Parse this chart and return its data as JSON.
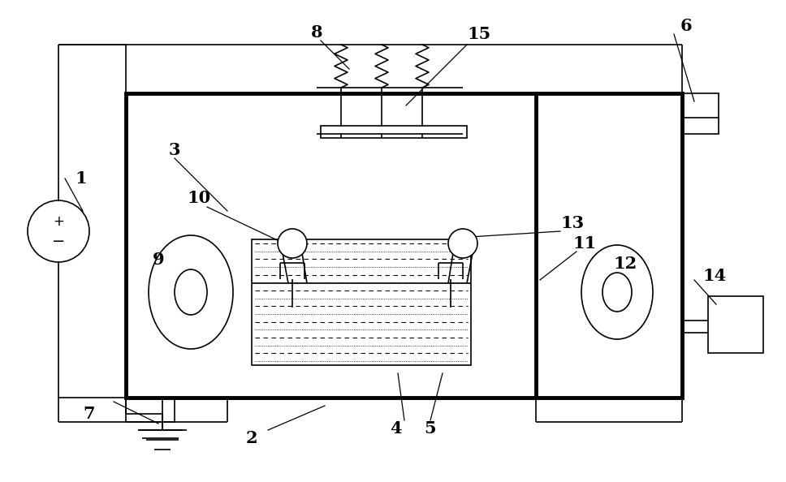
{
  "bg_color": "#ffffff",
  "line_color": "#000000",
  "thick_lw": 3.5,
  "thin_lw": 1.2,
  "font_size": 15
}
